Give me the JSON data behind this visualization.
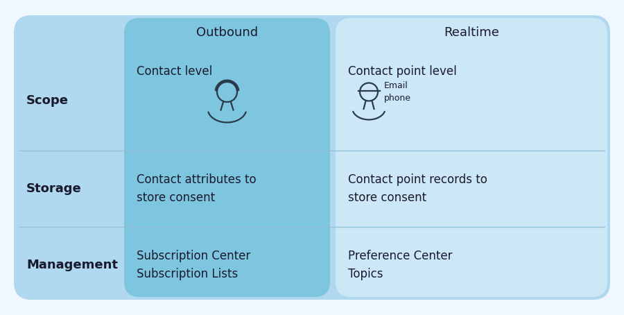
{
  "bg_color": "#f0f8ff",
  "header_outbound": "Outbound",
  "header_realtime": "Realtime",
  "rows": [
    {
      "label": "Scope",
      "outbound": "Contact level",
      "realtime": "Contact point level",
      "has_icons": true
    },
    {
      "label": "Storage",
      "outbound": "Contact attributes to\nstore consent",
      "realtime": "Contact point records to\nstore consent",
      "has_icons": false
    },
    {
      "label": "Management",
      "outbound": "Subscription Center\nSubscription Lists",
      "realtime": "Preference Center\nTopics",
      "has_icons": false
    }
  ],
  "text_color": "#1a1a2e",
  "font_size_header": 13,
  "font_size_label": 13,
  "font_size_cell": 12,
  "font_size_icon_label": 9,
  "table_bg": "#b8dff0",
  "outbound_bg": "#7ec8e3",
  "realtime_bg": "#c8e8f5",
  "left_col_bg": "#9dd0e8"
}
